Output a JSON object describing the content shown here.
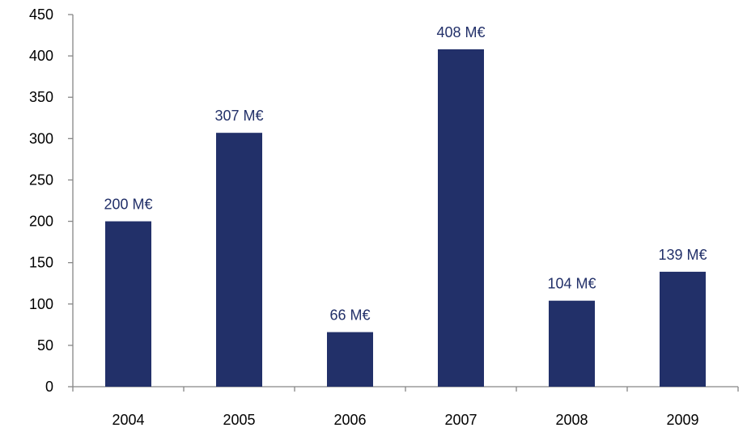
{
  "chart_data": {
    "type": "bar",
    "categories": [
      "2004",
      "2005",
      "2006",
      "2007",
      "2008",
      "2009"
    ],
    "values": [
      200,
      307,
      66,
      408,
      104,
      139
    ],
    "data_labels": [
      "200 M€",
      "307 M€",
      "66 M€",
      "408 M€",
      "104 M€",
      "139 M€"
    ],
    "title": "",
    "xlabel": "",
    "ylabel": "",
    "ylim": [
      0,
      450
    ],
    "yticks": [
      0,
      50,
      100,
      150,
      200,
      250,
      300,
      350,
      400,
      450
    ],
    "grid": false,
    "legend": "none",
    "colors": {
      "bar": "#223069",
      "data_label": "#223069",
      "axis": "#868686"
    }
  }
}
